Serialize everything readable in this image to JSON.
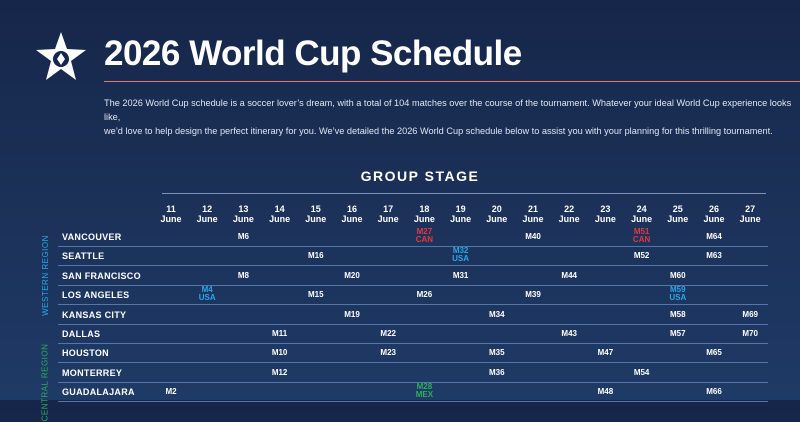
{
  "page": {
    "title": "2026 World Cup Schedule",
    "intro": [
      "The 2026 World Cup schedule is a soccer lover’s dream, with a total of 104 matches over the course of the tournament. Whatever your ideal World Cup experience looks like,",
      "we’d love to help design the perfect itinerary for you. We’ve detailed the 2026 World Cup schedule below to assist you with your planning for this thrilling tournament."
    ],
    "section_title": "GROUP STAGE",
    "logo_icon": "star-logo-icon",
    "colors": {
      "accent_line": "#e07a6a",
      "host_canada": "#e0393e",
      "host_usa": "#2aa7e8",
      "host_mexico": "#2eae5b",
      "western_region": "#2aa7e8",
      "central_region": "#2eae5b"
    }
  },
  "days": [
    {
      "num": "11",
      "month": "June"
    },
    {
      "num": "12",
      "month": "June"
    },
    {
      "num": "13",
      "month": "June"
    },
    {
      "num": "14",
      "month": "June"
    },
    {
      "num": "15",
      "month": "June"
    },
    {
      "num": "16",
      "month": "June"
    },
    {
      "num": "17",
      "month": "June"
    },
    {
      "num": "18",
      "month": "June"
    },
    {
      "num": "19",
      "month": "June"
    },
    {
      "num": "20",
      "month": "June"
    },
    {
      "num": "21",
      "month": "June"
    },
    {
      "num": "22",
      "month": "June"
    },
    {
      "num": "23",
      "month": "June"
    },
    {
      "num": "24",
      "month": "June"
    },
    {
      "num": "25",
      "month": "June"
    },
    {
      "num": "26",
      "month": "June"
    },
    {
      "num": "27",
      "month": "June"
    }
  ],
  "regions": [
    {
      "label": "WESTERN REGION",
      "color": "#2aa7e8"
    },
    {
      "label": "CENTRAL REGION",
      "color": "#2eae5b"
    }
  ],
  "rows": [
    {
      "city": "VANCOUVER",
      "matches": [
        {
          "day": "13",
          "label": "M6"
        },
        {
          "day": "18",
          "label": "M27",
          "host": "CAN",
          "color": "#e0393e"
        },
        {
          "day": "21",
          "label": "M40"
        },
        {
          "day": "24",
          "label": "M51",
          "host": "CAN",
          "color": "#e0393e"
        },
        {
          "day": "26",
          "label": "M64"
        }
      ]
    },
    {
      "city": "SEATTLE",
      "matches": [
        {
          "day": "15",
          "label": "M16"
        },
        {
          "day": "19",
          "label": "M32",
          "host": "USA",
          "color": "#2aa7e8"
        },
        {
          "day": "24",
          "label": "M52"
        },
        {
          "day": "26",
          "label": "M63"
        }
      ]
    },
    {
      "city": "SAN FRANCISCO",
      "matches": [
        {
          "day": "13",
          "label": "M8"
        },
        {
          "day": "16",
          "label": "M20"
        },
        {
          "day": "19",
          "label": "M31"
        },
        {
          "day": "22",
          "label": "M44"
        },
        {
          "day": "25",
          "label": "M60"
        }
      ]
    },
    {
      "city": "LOS ANGELES",
      "matches": [
        {
          "day": "12",
          "label": "M4",
          "host": "USA",
          "color": "#2aa7e8"
        },
        {
          "day": "15",
          "label": "M15"
        },
        {
          "day": "18",
          "label": "M26"
        },
        {
          "day": "21",
          "label": "M39"
        },
        {
          "day": "25",
          "label": "M59",
          "host": "USA",
          "color": "#2aa7e8"
        }
      ]
    },
    {
      "city": "KANSAS CITY",
      "matches": [
        {
          "day": "16",
          "label": "M19"
        },
        {
          "day": "20",
          "label": "M34"
        },
        {
          "day": "25",
          "label": "M58"
        },
        {
          "day": "27",
          "label": "M69"
        }
      ]
    },
    {
      "city": "DALLAS",
      "matches": [
        {
          "day": "14",
          "label": "M11"
        },
        {
          "day": "17",
          "label": "M22"
        },
        {
          "day": "22",
          "label": "M43"
        },
        {
          "day": "25",
          "label": "M57"
        },
        {
          "day": "27",
          "label": "M70"
        }
      ]
    },
    {
      "city": "HOUSTON",
      "matches": [
        {
          "day": "14",
          "label": "M10"
        },
        {
          "day": "17",
          "label": "M23"
        },
        {
          "day": "20",
          "label": "M35"
        },
        {
          "day": "23",
          "label": "M47"
        },
        {
          "day": "26",
          "label": "M65"
        }
      ]
    },
    {
      "city": "MONTERREY",
      "matches": [
        {
          "day": "14",
          "label": "M12"
        },
        {
          "day": "20",
          "label": "M36"
        },
        {
          "day": "24",
          "label": "M54"
        }
      ]
    },
    {
      "city": "GUADALAJARA",
      "matches": [
        {
          "day": "11",
          "label": "M2"
        },
        {
          "day": "18",
          "label": "M28",
          "host": "MEX",
          "color": "#2eae5b"
        },
        {
          "day": "23",
          "label": "M48"
        },
        {
          "day": "26",
          "label": "M66"
        }
      ]
    }
  ]
}
